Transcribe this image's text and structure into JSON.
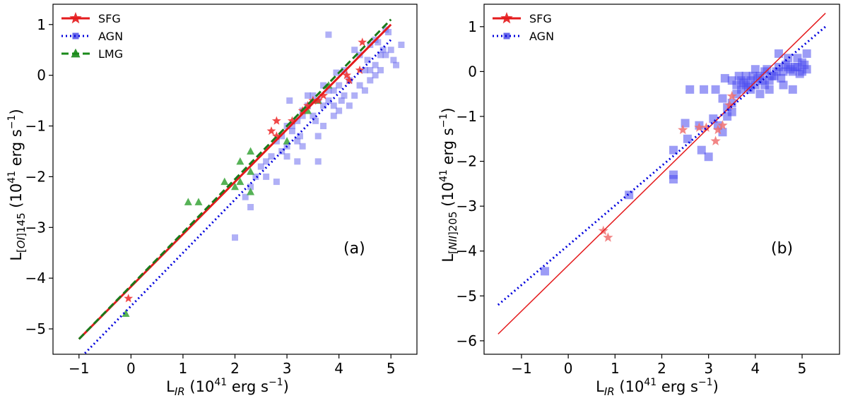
{
  "chart_data": [
    {
      "type": "scatter",
      "panel_label": "(a)",
      "xlabel": "L_IR (10^41 erg s^-1)",
      "ylabel": "L_[OI]145 (10^41 erg s^-1)",
      "xlim": [
        -1.5,
        5.5
      ],
      "ylim": [
        -5.5,
        1.4
      ],
      "x_ticks": [
        -1,
        0,
        1,
        2,
        3,
        4,
        5
      ],
      "y_ticks": [
        -5,
        -4,
        -3,
        -2,
        -1,
        0,
        1
      ],
      "legend_position": "top-left",
      "legend": [
        {
          "label": "SFG",
          "marker": "star",
          "line": "solid",
          "color": "#e41a1c"
        },
        {
          "label": "AGN",
          "marker": "square",
          "line": "dotted",
          "color": "#0000dd"
        },
        {
          "label": "LMG",
          "marker": "triangle",
          "line": "dashed",
          "color": "#1a8a1a"
        }
      ],
      "series": [
        {
          "name": "AGN",
          "marker": "square",
          "color": "#6f6fef",
          "points": [
            [
              4.9,
              0.9
            ],
            [
              4.95,
              0.85
            ],
            [
              4.7,
              0.7
            ],
            [
              4.75,
              0.65
            ],
            [
              4.6,
              0.6
            ],
            [
              4.85,
              0.5
            ],
            [
              4.8,
              0.4
            ],
            [
              5.0,
              0.5
            ],
            [
              4.9,
              0.4
            ],
            [
              5.2,
              0.6
            ],
            [
              4.7,
              0.2
            ],
            [
              4.6,
              0.1
            ],
            [
              5.05,
              0.3
            ],
            [
              4.55,
              0.3
            ],
            [
              4.4,
              0.4
            ],
            [
              4.3,
              0.5
            ],
            [
              4.1,
              0.1
            ],
            [
              4.2,
              -0.1
            ],
            [
              4.0,
              -0.2
            ],
            [
              3.9,
              -0.3
            ],
            [
              4.1,
              -0.4
            ],
            [
              3.8,
              -0.3
            ],
            [
              3.8,
              -0.5
            ],
            [
              3.7,
              -0.6
            ],
            [
              3.6,
              -0.5
            ],
            [
              3.5,
              -0.4
            ],
            [
              3.4,
              -0.4
            ],
            [
              3.4,
              -0.6
            ],
            [
              3.3,
              -0.8
            ],
            [
              3.2,
              -0.9
            ],
            [
              3.1,
              -1.0
            ],
            [
              3.0,
              -1.0
            ],
            [
              3.1,
              -1.1
            ],
            [
              3.2,
              -1.3
            ],
            [
              3.0,
              -1.4
            ],
            [
              2.9,
              -1.5
            ],
            [
              2.8,
              -1.3
            ],
            [
              2.7,
              -1.6
            ],
            [
              2.6,
              -1.7
            ],
            [
              2.5,
              -1.8
            ],
            [
              2.4,
              -2.0
            ],
            [
              2.3,
              -2.2
            ],
            [
              2.2,
              -2.4
            ],
            [
              2.6,
              -2.0
            ],
            [
              3.0,
              -1.6
            ],
            [
              3.2,
              -1.7
            ],
            [
              3.3,
              -1.4
            ],
            [
              3.6,
              -1.2
            ],
            [
              3.7,
              -1.0
            ],
            [
              3.9,
              -0.8
            ],
            [
              4.0,
              -0.7
            ],
            [
              4.2,
              -0.6
            ],
            [
              4.3,
              -0.4
            ],
            [
              4.5,
              -0.3
            ],
            [
              4.6,
              -0.1
            ],
            [
              4.7,
              0.0
            ],
            [
              4.8,
              0.1
            ],
            [
              5.1,
              0.2
            ],
            [
              3.8,
              0.8
            ],
            [
              3.6,
              -1.7
            ],
            [
              2.0,
              -3.2
            ],
            [
              2.3,
              -2.6
            ],
            [
              2.8,
              -2.1
            ],
            [
              3.3,
              -0.7
            ],
            [
              3.5,
              -0.8
            ],
            [
              3.9,
              -0.6
            ],
            [
              4.05,
              -0.5
            ],
            [
              4.4,
              -0.2
            ],
            [
              4.5,
              0.1
            ],
            [
              3.05,
              -0.5
            ],
            [
              3.7,
              -0.2
            ],
            [
              3.95,
              0.05
            ],
            [
              2.9,
              -1.2
            ],
            [
              3.25,
              -1.2
            ],
            [
              3.55,
              -0.9
            ]
          ]
        },
        {
          "name": "LMG",
          "marker": "triangle",
          "color": "#44aa44",
          "points": [
            [
              -0.1,
              -4.7
            ],
            [
              1.1,
              -2.5
            ],
            [
              1.3,
              -2.5
            ],
            [
              1.8,
              -2.1
            ],
            [
              2.0,
              -2.2
            ],
            [
              2.1,
              -1.7
            ],
            [
              2.3,
              -1.5
            ],
            [
              2.3,
              -1.9
            ],
            [
              2.1,
              -2.1
            ],
            [
              2.3,
              -2.3
            ],
            [
              3.0,
              -1.3
            ],
            [
              3.4,
              -0.7
            ],
            [
              3.6,
              -0.5
            ],
            [
              3.8,
              -0.2
            ]
          ]
        },
        {
          "name": "SFG",
          "marker": "star",
          "color": "#ee3333",
          "points": [
            [
              -0.05,
              -4.4
            ],
            [
              2.7,
              -1.1
            ],
            [
              2.8,
              -0.9
            ],
            [
              2.8,
              -1.2
            ],
            [
              3.4,
              -0.6
            ],
            [
              3.5,
              -0.5
            ],
            [
              3.6,
              -0.5
            ],
            [
              3.7,
              -0.4
            ],
            [
              4.15,
              0.0
            ],
            [
              4.2,
              -0.1
            ],
            [
              4.4,
              0.1
            ],
            [
              4.45,
              0.65
            ],
            [
              3.3,
              -0.7
            ],
            [
              3.1,
              -0.9
            ]
          ]
        }
      ],
      "fits": [
        {
          "name": "SFG",
          "style": "solid",
          "color": "#e41a1c",
          "x": [
            -1.0,
            5.0
          ],
          "y": [
            -5.2,
            1.0
          ]
        },
        {
          "name": "LMG",
          "style": "dashed",
          "color": "#1a7a1a",
          "x": [
            -1.0,
            5.0
          ],
          "y": [
            -5.2,
            1.1
          ]
        },
        {
          "name": "AGN",
          "style": "dotted",
          "color": "#0000dd",
          "x": [
            -1.0,
            5.0
          ],
          "y": [
            -5.6,
            0.7
          ]
        }
      ]
    },
    {
      "type": "scatter",
      "panel_label": "(b)",
      "xlabel": "L_IR (10^41 erg s^-1)",
      "ylabel": "L_[NII]205 (10^41 erg s^-1)",
      "xlim": [
        -1.8,
        5.8
      ],
      "ylim": [
        -6.3,
        1.5
      ],
      "x_ticks": [
        -1,
        0,
        1,
        2,
        3,
        4,
        5
      ],
      "y_ticks": [
        -6,
        -5,
        -4,
        -3,
        -2,
        -1,
        0,
        1
      ],
      "legend_position": "top-left",
      "legend": [
        {
          "label": "SFG",
          "marker": "star",
          "line": "solid",
          "color": "#e41a1c"
        },
        {
          "label": "AGN",
          "marker": "square",
          "line": "dotted",
          "color": "#0000dd"
        }
      ],
      "series": [
        {
          "name": "AGN",
          "marker": "square",
          "color": "#4a4aee",
          "points": [
            [
              -0.5,
              -4.45
            ],
            [
              1.3,
              -2.75
            ],
            [
              2.25,
              -1.75
            ],
            [
              2.25,
              -2.3
            ],
            [
              2.25,
              -2.4
            ],
            [
              2.5,
              -1.15
            ],
            [
              2.55,
              -1.5
            ],
            [
              2.8,
              -1.2
            ],
            [
              2.85,
              -1.75
            ],
            [
              3.0,
              -1.9
            ],
            [
              3.1,
              -1.05
            ],
            [
              3.2,
              -1.2
            ],
            [
              3.3,
              -1.35
            ],
            [
              3.3,
              -0.6
            ],
            [
              3.4,
              -1.0
            ],
            [
              3.4,
              -0.8
            ],
            [
              3.5,
              -0.7
            ],
            [
              3.5,
              -0.9
            ],
            [
              3.6,
              -0.3
            ],
            [
              3.7,
              -0.2
            ],
            [
              3.7,
              -0.4
            ],
            [
              3.8,
              -0.3
            ],
            [
              3.8,
              -0.1
            ],
            [
              3.9,
              -0.2
            ],
            [
              3.9,
              -0.4
            ],
            [
              4.0,
              -0.3
            ],
            [
              4.0,
              0.05
            ],
            [
              4.1,
              -0.1
            ],
            [
              4.1,
              -0.5
            ],
            [
              4.2,
              0.0
            ],
            [
              4.2,
              -0.3
            ],
            [
              4.3,
              -0.2
            ],
            [
              4.3,
              -0.4
            ],
            [
              4.4,
              -0.1
            ],
            [
              4.5,
              0.1
            ],
            [
              4.5,
              0.4
            ],
            [
              4.6,
              0.0
            ],
            [
              4.6,
              -0.3
            ],
            [
              4.7,
              0.3
            ],
            [
              4.7,
              0.1
            ],
            [
              4.8,
              0.0
            ],
            [
              4.8,
              -0.4
            ],
            [
              4.9,
              0.1
            ],
            [
              4.9,
              0.3
            ],
            [
              5.0,
              0.0
            ],
            [
              5.0,
              0.2
            ],
            [
              5.1,
              0.4
            ],
            [
              5.1,
              0.05
            ],
            [
              3.35,
              -0.15
            ],
            [
              3.15,
              -0.4
            ],
            [
              2.6,
              -0.4
            ],
            [
              2.9,
              -0.4
            ],
            [
              3.6,
              -0.5
            ],
            [
              3.75,
              -0.25
            ],
            [
              3.85,
              -0.35
            ],
            [
              4.05,
              -0.15
            ],
            [
              4.15,
              -0.2
            ],
            [
              4.35,
              -0.1
            ],
            [
              4.55,
              -0.15
            ],
            [
              4.75,
              0.05
            ],
            [
              4.85,
              0.1
            ],
            [
              4.95,
              -0.05
            ],
            [
              5.05,
              0.15
            ],
            [
              3.5,
              -0.2
            ],
            [
              3.65,
              -0.1
            ],
            [
              3.95,
              -0.1
            ],
            [
              4.25,
              0.05
            ],
            [
              4.45,
              0.0
            ],
            [
              4.65,
              0.15
            ]
          ]
        },
        {
          "name": "SFG",
          "marker": "star",
          "color": "#f07070",
          "points": [
            [
              0.75,
              -3.55
            ],
            [
              0.85,
              -3.7
            ],
            [
              2.45,
              -1.3
            ],
            [
              2.8,
              -1.25
            ],
            [
              2.95,
              -1.25
            ],
            [
              3.15,
              -1.55
            ],
            [
              3.2,
              -1.3
            ],
            [
              3.3,
              -1.2
            ],
            [
              3.45,
              -0.75
            ],
            [
              3.5,
              -0.55
            ]
          ]
        }
      ],
      "fits": [
        {
          "name": "SFG",
          "style": "solid",
          "color": "#e41a1c",
          "x": [
            -1.5,
            5.5
          ],
          "y": [
            -5.85,
            1.3
          ]
        },
        {
          "name": "AGN",
          "style": "dotted",
          "color": "#0000dd",
          "x": [
            -1.5,
            5.5
          ],
          "y": [
            -5.2,
            1.0
          ]
        }
      ]
    }
  ]
}
